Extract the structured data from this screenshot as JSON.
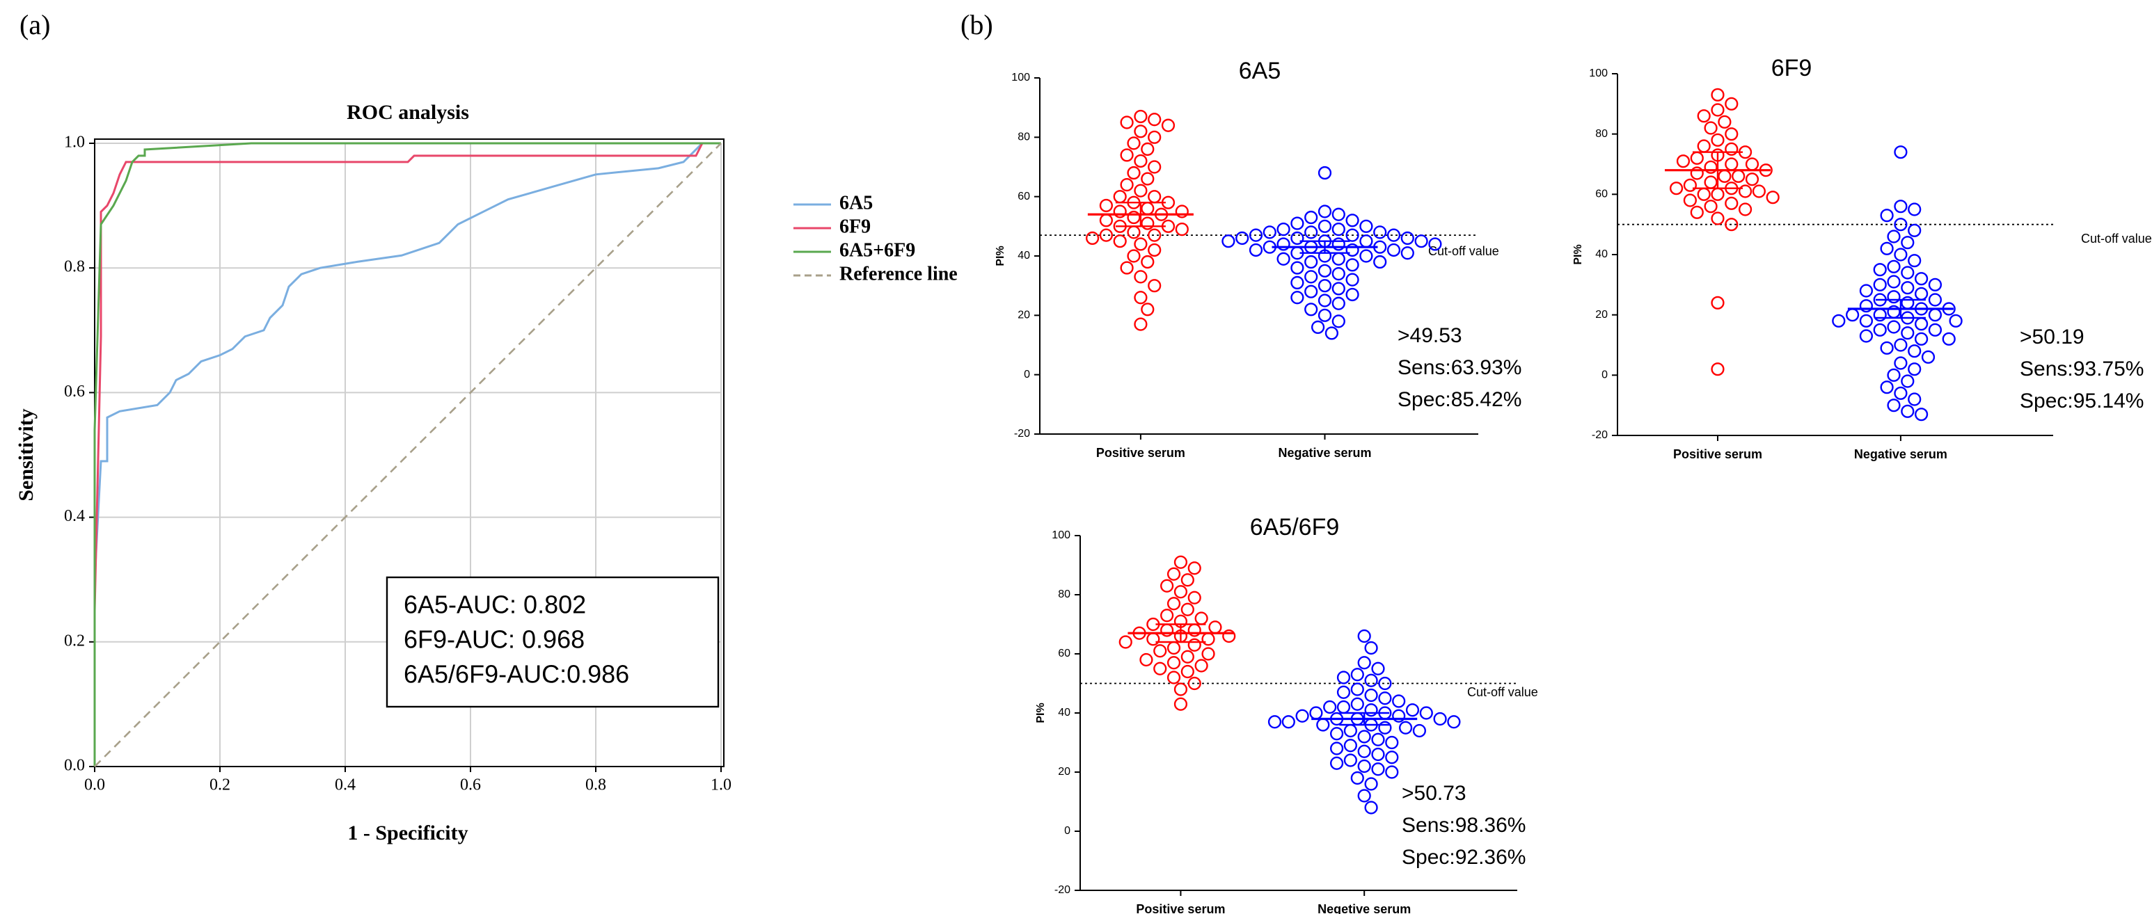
{
  "panel_labels": [
    "(a)",
    "(b)"
  ],
  "chart_data": [
    {
      "type": "line",
      "title": "ROC  analysis",
      "xlabel": "1 - Specificity",
      "ylabel": "Sensitivity",
      "xlim": [
        0,
        1
      ],
      "ylim": [
        0,
        1
      ],
      "grid": true,
      "legend": "right",
      "xticks": [
        {
          "value": 0,
          "label": "0.0"
        },
        {
          "value": 0.2,
          "label": "0.2"
        },
        {
          "value": 0.4,
          "label": "0.4"
        },
        {
          "value": 0.6,
          "label": "0.6"
        },
        {
          "value": 0.8,
          "label": "0.8"
        },
        {
          "value": 1,
          "label": "1.0"
        }
      ],
      "yticks": [
        {
          "value": 0,
          "label": "0.0"
        },
        {
          "value": 0.2,
          "label": "0.2"
        },
        {
          "value": 0.4,
          "label": "0.4"
        },
        {
          "value": 0.6,
          "label": "0.6"
        },
        {
          "value": 0.8,
          "label": "0.8"
        },
        {
          "value": 1,
          "label": "1.0"
        }
      ],
      "series": [
        {
          "name": "6A5",
          "color": "#7aaee0",
          "x": [
            0,
            0,
            0.01,
            0.02,
            0.02,
            0.04,
            0.1,
            0.12,
            0.13,
            0.15,
            0.17,
            0.2,
            0.22,
            0.24,
            0.27,
            0.28,
            0.3,
            0.31,
            0.33,
            0.36,
            0.42,
            0.49,
            0.55,
            0.58,
            0.62,
            0.66,
            0.73,
            0.8,
            0.9,
            0.94,
            0.97,
            1
          ],
          "values": [
            0,
            0.3,
            0.49,
            0.49,
            0.56,
            0.57,
            0.58,
            0.6,
            0.62,
            0.63,
            0.65,
            0.66,
            0.67,
            0.69,
            0.7,
            0.72,
            0.74,
            0.77,
            0.79,
            0.8,
            0.81,
            0.82,
            0.84,
            0.87,
            0.89,
            0.91,
            0.93,
            0.95,
            0.96,
            0.97,
            1,
            1
          ]
        },
        {
          "name": "6F9",
          "color": "#e8476a",
          "x": [
            0,
            0,
            0.01,
            0.01,
            0.02,
            0.03,
            0.04,
            0.05,
            0.08,
            0.5,
            0.51,
            0.96,
            0.97,
            1
          ],
          "values": [
            0,
            0.25,
            0.69,
            0.89,
            0.9,
            0.92,
            0.95,
            0.97,
            0.97,
            0.97,
            0.98,
            0.98,
            1,
            1
          ]
        },
        {
          "name": "6A5+6F9",
          "color": "#5aa84f",
          "x": [
            0,
            0,
            0.01,
            0.03,
            0.04,
            0.05,
            0.06,
            0.07,
            0.08,
            0.08,
            0.25,
            1
          ],
          "values": [
            0,
            0.54,
            0.87,
            0.9,
            0.92,
            0.94,
            0.97,
            0.98,
            0.98,
            0.99,
            1,
            1
          ]
        },
        {
          "name": "Reference line",
          "color": "#a8a08a",
          "dash": true,
          "x": [
            0,
            1
          ],
          "values": [
            0,
            1
          ]
        }
      ],
      "annotations": [
        "6A5-AUC: 0.802",
        "6F9-AUC: 0.968",
        "6A5/6F9-AUC:0.986"
      ]
    },
    {
      "type": "dotplot",
      "title": "6A5",
      "ylabel": "PI%",
      "ylim": [
        -20,
        100
      ],
      "yticks": [
        -20,
        0,
        20,
        40,
        60,
        80,
        100
      ],
      "categories": [
        "Positive serum",
        "Negative serum"
      ],
      "cutoff": 47,
      "cutoff_label": "Cut-off value",
      "annotations": [
        ">49.53",
        "Sens:63.93%",
        "Spec:85.42%"
      ],
      "groups": [
        {
          "color": "#ff0000",
          "mean": 54,
          "error": 4,
          "values": [
            87,
            85,
            86,
            84,
            82,
            80,
            78,
            76,
            74,
            72,
            70,
            68,
            66,
            64,
            62,
            60,
            60,
            58,
            58,
            57,
            56,
            55,
            55,
            54,
            53,
            52,
            51,
            50,
            50,
            49,
            48,
            47,
            47,
            46,
            45,
            44,
            42,
            40,
            38,
            36,
            33,
            30,
            26,
            22,
            17
          ]
        },
        {
          "color": "#0000ff",
          "mean": 43,
          "error": 2,
          "values": [
            68,
            55,
            54,
            53,
            52,
            51,
            50,
            50,
            49,
            49,
            48,
            48,
            48,
            47,
            47,
            47,
            46,
            46,
            46,
            45,
            45,
            45,
            45,
            44,
            44,
            44,
            43,
            43,
            43,
            42,
            42,
            42,
            41,
            41,
            40,
            40,
            39,
            39,
            38,
            38,
            37,
            36,
            35,
            34,
            33,
            32,
            31,
            30,
            29,
            28,
            27,
            26,
            25,
            24,
            22,
            20,
            18,
            16,
            14
          ]
        }
      ]
    },
    {
      "type": "dotplot",
      "title": "6F9",
      "ylabel": "PI%",
      "ylim": [
        -20,
        100
      ],
      "yticks": [
        -20,
        0,
        20,
        40,
        60,
        80,
        100
      ],
      "categories": [
        "Positive serum",
        "Negative serum"
      ],
      "cutoff": 50,
      "cutoff_label": "Cut-off value",
      "annotations": [
        ">50.19",
        "Sens:93.75%",
        "Spec:95.14%"
      ],
      "groups": [
        {
          "color": "#ff0000",
          "mean": 68,
          "error": 6,
          "values": [
            93,
            90,
            88,
            86,
            84,
            82,
            80,
            78,
            76,
            75,
            74,
            73,
            72,
            71,
            70,
            70,
            69,
            68,
            67,
            66,
            66,
            65,
            64,
            63,
            62,
            62,
            61,
            61,
            60,
            60,
            59,
            58,
            57,
            56,
            55,
            54,
            52,
            50,
            24,
            2
          ]
        },
        {
          "color": "#0000ff",
          "mean": 22,
          "error": 3,
          "values": [
            74,
            56,
            55,
            53,
            50,
            48,
            46,
            44,
            42,
            40,
            38,
            36,
            35,
            34,
            32,
            31,
            30,
            30,
            29,
            28,
            27,
            26,
            25,
            25,
            24,
            23,
            22,
            22,
            21,
            20,
            20,
            20,
            19,
            18,
            18,
            18,
            17,
            16,
            15,
            15,
            14,
            13,
            12,
            12,
            10,
            9,
            8,
            6,
            4,
            2,
            0,
            -2,
            -4,
            -6,
            -8,
            -10,
            -12,
            -13
          ]
        }
      ]
    },
    {
      "type": "dotplot",
      "title": "6A5/6F9",
      "ylabel": "PI%",
      "ylim": [
        -20,
        100
      ],
      "yticks": [
        -20,
        0,
        20,
        40,
        60,
        80,
        100
      ],
      "categories": [
        "Positive serum",
        "Negetive serum"
      ],
      "cutoff": 50,
      "cutoff_label": "Cut-off value",
      "annotations": [
        ">50.73",
        "Sens:98.36%",
        "Spec:92.36%"
      ],
      "groups": [
        {
          "color": "#ff0000",
          "mean": 67,
          "error": 3,
          "values": [
            91,
            89,
            87,
            85,
            83,
            81,
            79,
            77,
            75,
            73,
            72,
            71,
            70,
            69,
            68,
            68,
            67,
            66,
            66,
            65,
            65,
            64,
            63,
            62,
            61,
            60,
            59,
            58,
            57,
            56,
            55,
            54,
            52,
            50,
            48,
            43
          ]
        },
        {
          "color": "#0000ff",
          "mean": 38,
          "error": 2,
          "values": [
            66,
            62,
            57,
            55,
            53,
            52,
            51,
            50,
            48,
            47,
            46,
            45,
            44,
            43,
            42,
            42,
            41,
            41,
            40,
            40,
            40,
            39,
            39,
            38,
            38,
            38,
            37,
            37,
            37,
            36,
            36,
            35,
            35,
            34,
            34,
            33,
            32,
            31,
            30,
            29,
            28,
            27,
            26,
            25,
            24,
            23,
            22,
            21,
            20,
            18,
            16,
            12,
            8
          ]
        }
      ]
    }
  ]
}
